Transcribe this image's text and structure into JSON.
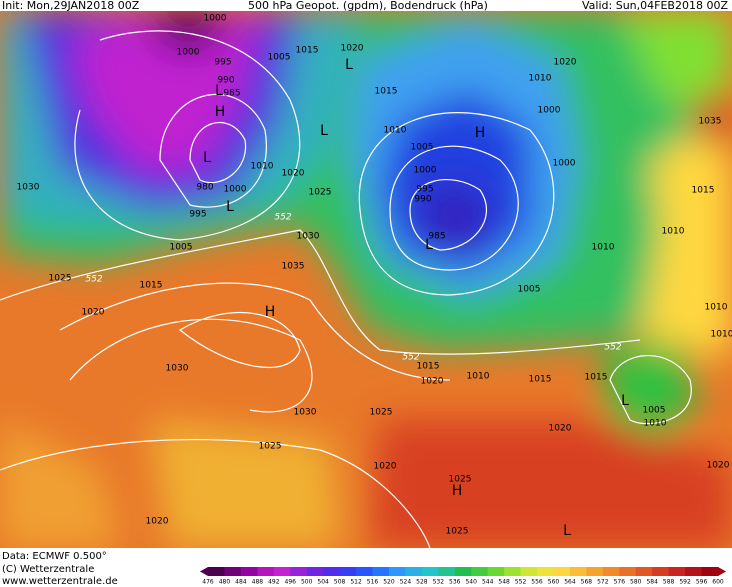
{
  "header": {
    "init": "Init: Mon,29JAN2018 00Z",
    "title": "500 hPa Geopot. (gpdm), Bodendruck (hPa)",
    "valid": "Valid: Sun,04FEB2018 00Z"
  },
  "footer": {
    "data": "Data: ECMWF  0.500°",
    "copyright": "(C) Wetterzentrale",
    "url": "www.wetterzentrale.de"
  },
  "colorbar": {
    "ticks": [
      476,
      480,
      484,
      488,
      492,
      496,
      500,
      504,
      508,
      512,
      516,
      520,
      524,
      528,
      532,
      536,
      540,
      544,
      548,
      552,
      556,
      560,
      564,
      568,
      572,
      576,
      580,
      584,
      588,
      592,
      596,
      600
    ]
  },
  "map": {
    "isobar_labels": [
      1000,
      1000,
      995,
      990,
      985,
      1015,
      1020,
      1005,
      1015,
      1020,
      1010,
      1010,
      1005,
      1000,
      995,
      990,
      985,
      1000,
      1000,
      1010,
      1020,
      1025,
      1030,
      1035,
      1015,
      1025,
      1020,
      1030,
      1005,
      995,
      980,
      1000,
      1035,
      1015,
      1010,
      1010,
      1005,
      1015,
      1020,
      1010,
      1015,
      1015,
      1030,
      1030,
      1025,
      1025,
      1020,
      1020,
      1025,
      1020,
      1025,
      1005,
      1010,
      1010,
      1010,
      1020
    ],
    "pressure_centers": [
      "H",
      "H",
      "L",
      "L",
      "L",
      "H",
      "L",
      "L",
      "L",
      "H",
      "L",
      "L"
    ],
    "geopotential_labels": [
      552,
      552,
      552,
      552
    ]
  }
}
